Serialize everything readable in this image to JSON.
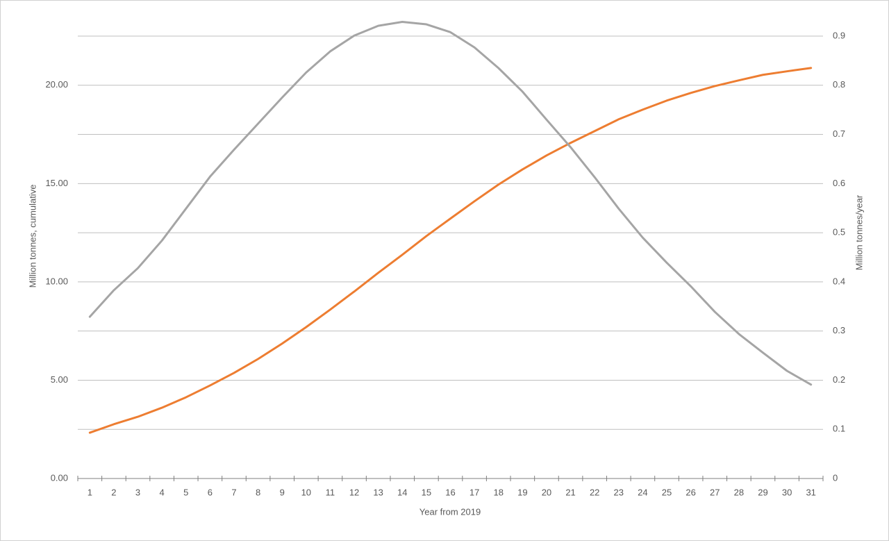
{
  "chart_data": {
    "type": "line",
    "x_label": "Year from 2019",
    "y_label": "Million tonnes, cumulative",
    "y2_label": "Million tonnes/year",
    "categories": [
      "1",
      "2",
      "3",
      "4",
      "5",
      "6",
      "7",
      "8",
      "9",
      "10",
      "11",
      "12",
      "13",
      "14",
      "15",
      "16",
      "17",
      "18",
      "19",
      "20",
      "21",
      "22",
      "23",
      "24",
      "25",
      "26",
      "27",
      "28",
      "29",
      "30",
      "31"
    ],
    "series": [
      {
        "color": "#ED7D31",
        "values": [
          2.33,
          2.76,
          3.14,
          3.6,
          4.13,
          4.73,
          5.37,
          6.08,
          6.86,
          7.7,
          8.59,
          9.51,
          10.46,
          11.38,
          12.33,
          13.22,
          14.1,
          14.95,
          15.72,
          16.43,
          17.07,
          17.67,
          18.27,
          18.76,
          19.22,
          19.61,
          19.96,
          20.25,
          20.53,
          20.71,
          20.88
        ]
      },
      {
        "color": "#A5A5A5",
        "axis": "y2",
        "values": [
          0.329,
          0.383,
          0.428,
          0.484,
          0.549,
          0.614,
          0.669,
          0.722,
          0.775,
          0.826,
          0.869,
          0.901,
          0.921,
          0.929,
          0.924,
          0.908,
          0.877,
          0.835,
          0.787,
          0.73,
          0.674,
          0.613,
          0.549,
          0.49,
          0.439,
          0.391,
          0.339,
          0.294,
          0.256,
          0.219,
          0.191
        ]
      }
    ],
    "ylim": [
      0,
      22.5
    ],
    "yticks": [
      {
        "value": 0,
        "label": "0.00"
      },
      {
        "value": 5,
        "label": "5.00"
      },
      {
        "value": 10,
        "label": "10.00"
      },
      {
        "value": 15,
        "label": "15.00"
      },
      {
        "value": 20,
        "label": "20.00"
      }
    ],
    "y2lim": [
      0,
      0.9
    ],
    "y2ticks": [
      0,
      0.1,
      0.2,
      0.3,
      0.4,
      0.5,
      0.6,
      0.7,
      0.8,
      0.9
    ],
    "grid": true
  }
}
